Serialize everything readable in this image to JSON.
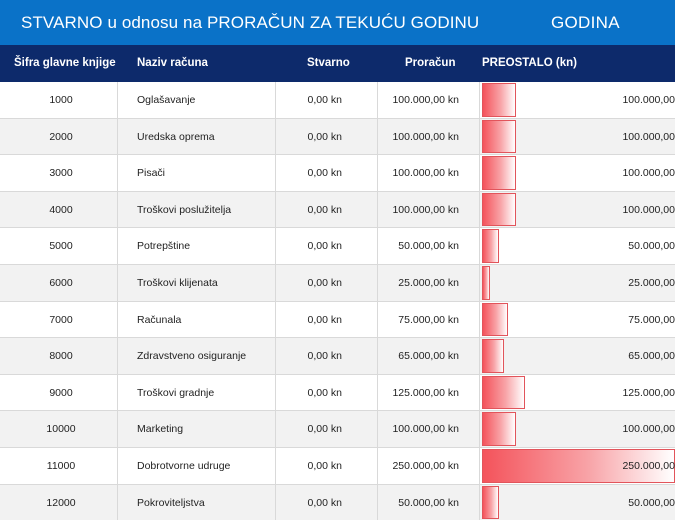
{
  "title": "STVARNO u odnosu na PRORAČUN ZA TEKUĆU GODINU",
  "year_label": "GODINA",
  "columns": {
    "code": "Šifra glavne knjige",
    "name": "Naziv računa",
    "actual": "Stvarno",
    "budget": "Proračun",
    "remaining": "PREOSTALO (kn)"
  },
  "colors": {
    "title_bg": "#0a72c8",
    "header_bg": "#0d2a6b",
    "bar": "#f4535b"
  },
  "max_remaining": 250000,
  "rows": [
    {
      "code": "1000",
      "name": "Oglašavanje",
      "actual": "0,00 kn",
      "budget": "100.000,00 kn",
      "remaining": "100.000,00",
      "remaining_value": 100000
    },
    {
      "code": "2000",
      "name": "Uredska oprema",
      "actual": "0,00 kn",
      "budget": "100.000,00 kn",
      "remaining": "100.000,00",
      "remaining_value": 100000
    },
    {
      "code": "3000",
      "name": "Pisači",
      "actual": "0,00 kn",
      "budget": "100.000,00 kn",
      "remaining": "100.000,00",
      "remaining_value": 100000
    },
    {
      "code": "4000",
      "name": "Troškovi poslužitelja",
      "actual": "0,00 kn",
      "budget": "100.000,00 kn",
      "remaining": "100.000,00",
      "remaining_value": 100000
    },
    {
      "code": "5000",
      "name": "Potrepštine",
      "actual": "0,00 kn",
      "budget": "50.000,00 kn",
      "remaining": "50.000,00",
      "remaining_value": 50000
    },
    {
      "code": "6000",
      "name": "Troškovi klijenata",
      "actual": "0,00 kn",
      "budget": "25.000,00 kn",
      "remaining": "25.000,00",
      "remaining_value": 25000
    },
    {
      "code": "7000",
      "name": "Računala",
      "actual": "0,00 kn",
      "budget": "75.000,00 kn",
      "remaining": "75.000,00",
      "remaining_value": 75000
    },
    {
      "code": "8000",
      "name": "Zdravstveno osiguranje",
      "actual": "0,00 kn",
      "budget": "65.000,00 kn",
      "remaining": "65.000,00",
      "remaining_value": 65000
    },
    {
      "code": "9000",
      "name": "Troškovi gradnje",
      "actual": "0,00 kn",
      "budget": "125.000,00 kn",
      "remaining": "125.000,00",
      "remaining_value": 125000
    },
    {
      "code": "10000",
      "name": "Marketing",
      "actual": "0,00 kn",
      "budget": "100.000,00 kn",
      "remaining": "100.000,00",
      "remaining_value": 100000
    },
    {
      "code": "11000",
      "name": "Dobrotvorne udruge",
      "actual": "0,00 kn",
      "budget": "250.000,00 kn",
      "remaining": "250.000,00",
      "remaining_value": 250000
    },
    {
      "code": "12000",
      "name": "Pokroviteljstva",
      "actual": "0,00 kn",
      "budget": "50.000,00 kn",
      "remaining": "50.000,00",
      "remaining_value": 50000
    }
  ]
}
